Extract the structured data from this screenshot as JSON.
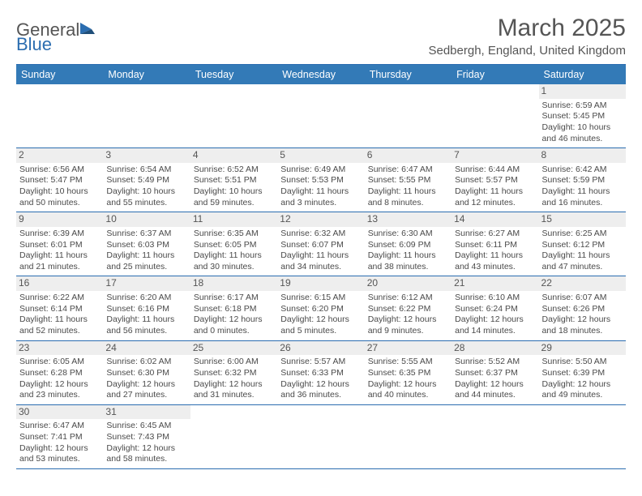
{
  "logo": {
    "text1": "General",
    "text2": "Blue"
  },
  "title": "March 2025",
  "location": "Sedbergh, England, United Kingdom",
  "colors": {
    "header_bg": "#337ab7",
    "border": "#2b6db0",
    "daynum_bg": "#eeeeee",
    "text": "#4a4a4a",
    "background": "#ffffff"
  },
  "fonts": {
    "title_size_pt": 22,
    "location_size_pt": 11,
    "header_size_pt": 9,
    "cell_size_pt": 8
  },
  "weekdays": [
    "Sunday",
    "Monday",
    "Tuesday",
    "Wednesday",
    "Thursday",
    "Friday",
    "Saturday"
  ],
  "weeks": [
    [
      null,
      null,
      null,
      null,
      null,
      null,
      {
        "n": "1",
        "sr": "Sunrise: 6:59 AM",
        "ss": "Sunset: 5:45 PM",
        "dl": "Daylight: 10 hours and 46 minutes."
      }
    ],
    [
      {
        "n": "2",
        "sr": "Sunrise: 6:56 AM",
        "ss": "Sunset: 5:47 PM",
        "dl": "Daylight: 10 hours and 50 minutes."
      },
      {
        "n": "3",
        "sr": "Sunrise: 6:54 AM",
        "ss": "Sunset: 5:49 PM",
        "dl": "Daylight: 10 hours and 55 minutes."
      },
      {
        "n": "4",
        "sr": "Sunrise: 6:52 AM",
        "ss": "Sunset: 5:51 PM",
        "dl": "Daylight: 10 hours and 59 minutes."
      },
      {
        "n": "5",
        "sr": "Sunrise: 6:49 AM",
        "ss": "Sunset: 5:53 PM",
        "dl": "Daylight: 11 hours and 3 minutes."
      },
      {
        "n": "6",
        "sr": "Sunrise: 6:47 AM",
        "ss": "Sunset: 5:55 PM",
        "dl": "Daylight: 11 hours and 8 minutes."
      },
      {
        "n": "7",
        "sr": "Sunrise: 6:44 AM",
        "ss": "Sunset: 5:57 PM",
        "dl": "Daylight: 11 hours and 12 minutes."
      },
      {
        "n": "8",
        "sr": "Sunrise: 6:42 AM",
        "ss": "Sunset: 5:59 PM",
        "dl": "Daylight: 11 hours and 16 minutes."
      }
    ],
    [
      {
        "n": "9",
        "sr": "Sunrise: 6:39 AM",
        "ss": "Sunset: 6:01 PM",
        "dl": "Daylight: 11 hours and 21 minutes."
      },
      {
        "n": "10",
        "sr": "Sunrise: 6:37 AM",
        "ss": "Sunset: 6:03 PM",
        "dl": "Daylight: 11 hours and 25 minutes."
      },
      {
        "n": "11",
        "sr": "Sunrise: 6:35 AM",
        "ss": "Sunset: 6:05 PM",
        "dl": "Daylight: 11 hours and 30 minutes."
      },
      {
        "n": "12",
        "sr": "Sunrise: 6:32 AM",
        "ss": "Sunset: 6:07 PM",
        "dl": "Daylight: 11 hours and 34 minutes."
      },
      {
        "n": "13",
        "sr": "Sunrise: 6:30 AM",
        "ss": "Sunset: 6:09 PM",
        "dl": "Daylight: 11 hours and 38 minutes."
      },
      {
        "n": "14",
        "sr": "Sunrise: 6:27 AM",
        "ss": "Sunset: 6:11 PM",
        "dl": "Daylight: 11 hours and 43 minutes."
      },
      {
        "n": "15",
        "sr": "Sunrise: 6:25 AM",
        "ss": "Sunset: 6:12 PM",
        "dl": "Daylight: 11 hours and 47 minutes."
      }
    ],
    [
      {
        "n": "16",
        "sr": "Sunrise: 6:22 AM",
        "ss": "Sunset: 6:14 PM",
        "dl": "Daylight: 11 hours and 52 minutes."
      },
      {
        "n": "17",
        "sr": "Sunrise: 6:20 AM",
        "ss": "Sunset: 6:16 PM",
        "dl": "Daylight: 11 hours and 56 minutes."
      },
      {
        "n": "18",
        "sr": "Sunrise: 6:17 AM",
        "ss": "Sunset: 6:18 PM",
        "dl": "Daylight: 12 hours and 0 minutes."
      },
      {
        "n": "19",
        "sr": "Sunrise: 6:15 AM",
        "ss": "Sunset: 6:20 PM",
        "dl": "Daylight: 12 hours and 5 minutes."
      },
      {
        "n": "20",
        "sr": "Sunrise: 6:12 AM",
        "ss": "Sunset: 6:22 PM",
        "dl": "Daylight: 12 hours and 9 minutes."
      },
      {
        "n": "21",
        "sr": "Sunrise: 6:10 AM",
        "ss": "Sunset: 6:24 PM",
        "dl": "Daylight: 12 hours and 14 minutes."
      },
      {
        "n": "22",
        "sr": "Sunrise: 6:07 AM",
        "ss": "Sunset: 6:26 PM",
        "dl": "Daylight: 12 hours and 18 minutes."
      }
    ],
    [
      {
        "n": "23",
        "sr": "Sunrise: 6:05 AM",
        "ss": "Sunset: 6:28 PM",
        "dl": "Daylight: 12 hours and 23 minutes."
      },
      {
        "n": "24",
        "sr": "Sunrise: 6:02 AM",
        "ss": "Sunset: 6:30 PM",
        "dl": "Daylight: 12 hours and 27 minutes."
      },
      {
        "n": "25",
        "sr": "Sunrise: 6:00 AM",
        "ss": "Sunset: 6:32 PM",
        "dl": "Daylight: 12 hours and 31 minutes."
      },
      {
        "n": "26",
        "sr": "Sunrise: 5:57 AM",
        "ss": "Sunset: 6:33 PM",
        "dl": "Daylight: 12 hours and 36 minutes."
      },
      {
        "n": "27",
        "sr": "Sunrise: 5:55 AM",
        "ss": "Sunset: 6:35 PM",
        "dl": "Daylight: 12 hours and 40 minutes."
      },
      {
        "n": "28",
        "sr": "Sunrise: 5:52 AM",
        "ss": "Sunset: 6:37 PM",
        "dl": "Daylight: 12 hours and 44 minutes."
      },
      {
        "n": "29",
        "sr": "Sunrise: 5:50 AM",
        "ss": "Sunset: 6:39 PM",
        "dl": "Daylight: 12 hours and 49 minutes."
      }
    ],
    [
      {
        "n": "30",
        "sr": "Sunrise: 6:47 AM",
        "ss": "Sunset: 7:41 PM",
        "dl": "Daylight: 12 hours and 53 minutes."
      },
      {
        "n": "31",
        "sr": "Sunrise: 6:45 AM",
        "ss": "Sunset: 7:43 PM",
        "dl": "Daylight: 12 hours and 58 minutes."
      },
      null,
      null,
      null,
      null,
      null
    ]
  ]
}
